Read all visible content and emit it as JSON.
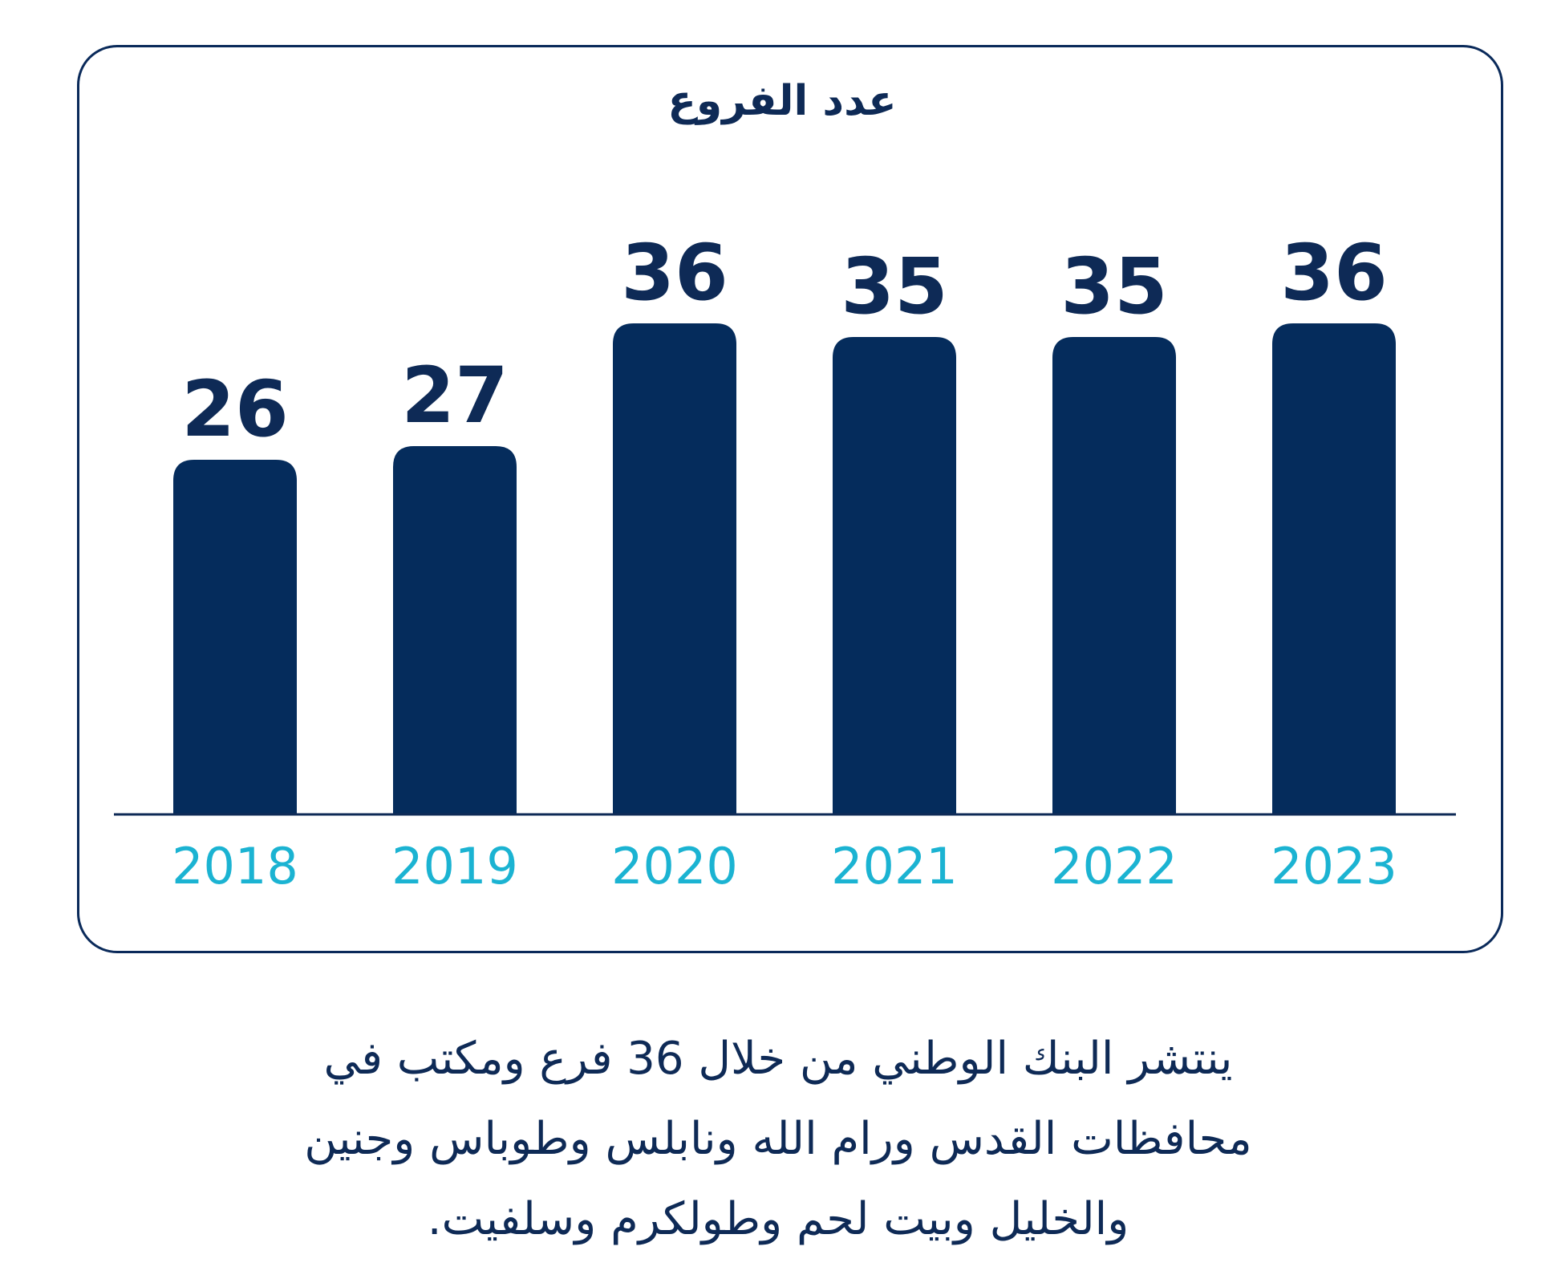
{
  "chart_data": {
    "type": "bar",
    "title": "عدد الفروع",
    "categories": [
      "2018",
      "2019",
      "2020",
      "2021",
      "2022",
      "2023"
    ],
    "values": [
      26,
      27,
      36,
      35,
      35,
      36
    ],
    "ylim": [
      0,
      40
    ],
    "grid": false,
    "legend": "none",
    "colors": {
      "bar": "#052c5c",
      "value_label": "#0e2a56",
      "category_label": "#1bb3d2",
      "axis": "#0e2a56",
      "title": "#0e2a56"
    }
  },
  "caption": {
    "lines": [
      "ينتشر البنك الوطني من خلال 36 فرع ومكتب في",
      "محافظات القدس ورام الله ونابلس وطوباس وجنين",
      "والخليل وبيت لحم وطولكرم وسلفيت."
    ]
  }
}
